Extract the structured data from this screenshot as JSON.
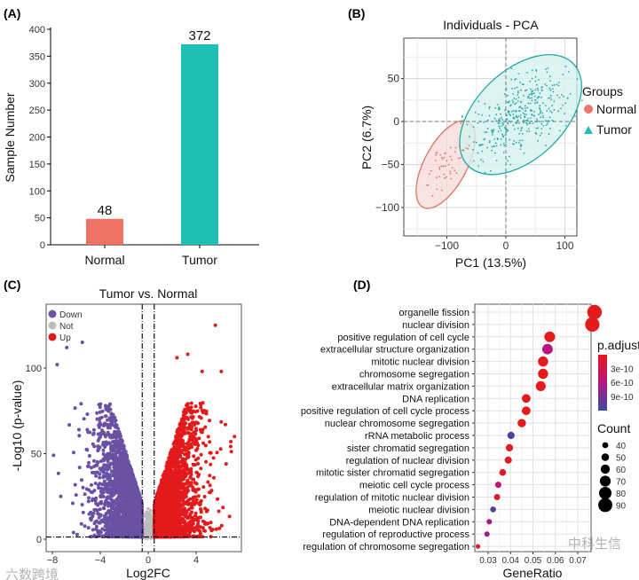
{
  "watermarks": {
    "left": "六数跨境",
    "right": "中科生信"
  },
  "chart_data": [
    {
      "panel": "(A)",
      "type": "bar",
      "title": "",
      "xlabel": "",
      "ylabel": "Sample Number",
      "categories": [
        "Normal",
        "Tumor"
      ],
      "values": [
        48,
        372
      ],
      "data_labels": [
        "48",
        "372"
      ],
      "colors": [
        "#ef7164",
        "#20bfb6"
      ],
      "ylim": [
        0,
        400
      ],
      "yticks": [
        "0",
        "50",
        "100",
        "150",
        "200",
        "250",
        "300",
        "350",
        "400"
      ]
    },
    {
      "panel": "(B)",
      "type": "scatter",
      "title": "Individuals - PCA",
      "xlabel": "PC1 (13.5%)",
      "ylabel": "PC2 (6.7%)",
      "xlim": [
        -160,
        120
      ],
      "ylim": [
        -132,
        95
      ],
      "xticks": [
        "-100",
        "0",
        "100"
      ],
      "yticks": [
        "50",
        "0",
        "-50",
        "-100"
      ],
      "legend": {
        "title": "Groups",
        "position": "right",
        "entries": [
          "Normal",
          "Tumor"
        ]
      },
      "series": [
        {
          "name": "Normal",
          "n": 48,
          "color": "#d9756b",
          "fill": "#f8dcd8",
          "center": [
            -100,
            -52
          ],
          "spread": [
            18,
            22
          ],
          "ellipse": {
            "center": [
              -102,
              -50
            ],
            "rx": 78,
            "ry": 30,
            "angle_deg": -62
          }
        },
        {
          "name": "Tumor",
          "n": 372,
          "color": "#22a9a3",
          "fill": "#d6f1f0",
          "center": [
            20,
            10
          ],
          "spread": [
            32,
            30
          ],
          "ellipse": {
            "center": [
              25,
              8
            ],
            "rx": 118,
            "ry": 62,
            "angle_deg": -44
          }
        }
      ]
    },
    {
      "panel": "(C)",
      "type": "scatter",
      "title": "Tumor vs. Normal",
      "xlabel": "Log2FC",
      "ylabel": "-Log10 (p-value)",
      "xlim": [
        -8.5,
        8
      ],
      "ylim": [
        -5,
        135
      ],
      "xticks": [
        "-8",
        "-4",
        "0",
        "4"
      ],
      "yticks": [
        "0",
        "50",
        "100"
      ],
      "thresholds": {
        "log2fc": [
          -0.5,
          0.5
        ],
        "neg_log10_p": 1.3
      },
      "legend": {
        "position": "top-left",
        "entries": [
          "Down",
          "Not",
          "Up"
        ]
      },
      "series": [
        {
          "name": "Down",
          "color": "#6a51a3",
          "n": 2600
        },
        {
          "name": "Not",
          "color": "#bdbdbd",
          "n": 700
        },
        {
          "name": "Up",
          "color": "#e31a1c",
          "n": 2600
        }
      ],
      "outliers": [
        [
          5.6,
          125
        ],
        [
          -7.6,
          102
        ],
        [
          -5.5,
          115
        ],
        [
          -6.8,
          112
        ],
        [
          2.4,
          106
        ],
        [
          3.3,
          108
        ],
        [
          4.5,
          98
        ],
        [
          6.1,
          98
        ],
        [
          7.2,
          60
        ],
        [
          6.9,
          57
        ],
        [
          -7.9,
          49
        ],
        [
          -7.3,
          25
        ],
        [
          6.5,
          44
        ],
        [
          -6.3,
          21
        ],
        [
          2.7,
          6
        ]
      ]
    },
    {
      "panel": "(D)",
      "type": "scatter",
      "title": "",
      "xlabel": "GeneRatio",
      "ylabel": "",
      "xlim": [
        0.0245,
        0.079
      ],
      "xticks": [
        0.03,
        0.04,
        0.05,
        0.06,
        0.07
      ],
      "xtick_labels": [
        "0.03",
        "0.04",
        "0.05",
        "0.06",
        "0.07"
      ],
      "terms": [
        "organelle fission",
        "nuclear division",
        "positive regulation of cell cycle",
        "extracellular structure organization",
        "mitotic nuclear division",
        "chromosome segregation",
        "extracellular matrix organization",
        "DNA replication",
        "positive regulation of cell cycle process",
        "nuclear chromosome segregation",
        "rRNA metabolic process",
        "sister chromatid segregation",
        "regulation of nuclear division",
        "mitotic sister chromatid segregation",
        "meiotic cell cycle process",
        "regulation of mitotic nuclear division",
        "meiotic nuclear division",
        "DNA-dependent DNA replication",
        "regulation of reproductive process",
        "regulation of chromosome segregation"
      ],
      "gene_ratio": [
        0.0775,
        0.0765,
        0.0575,
        0.0565,
        0.0545,
        0.0545,
        0.0535,
        0.047,
        0.047,
        0.045,
        0.0402,
        0.0395,
        0.039,
        0.0365,
        0.0345,
        0.034,
        0.0322,
        0.0305,
        0.0295,
        0.0255
      ],
      "count": [
        93,
        92,
        69,
        68,
        66,
        66,
        64,
        57,
        57,
        54,
        48,
        48,
        47,
        44,
        41,
        41,
        39,
        37,
        35,
        31
      ],
      "p_adjust": [
        1e-11,
        1e-11,
        1e-11,
        6e-10,
        1e-11,
        1e-11,
        1e-11,
        1e-11,
        1e-11,
        1e-11,
        1.15e-09,
        5e-11,
        5e-11,
        1e-10,
        5e-10,
        1e-10,
        1.1e-09,
        7e-10,
        7e-10,
        1e-10
      ],
      "color_legend": {
        "title": "p.adjust",
        "labels": [
          "3e-10",
          "6e-10",
          "9e-10"
        ],
        "values": [
          3e-10,
          6e-10,
          9e-10
        ],
        "range": [
          1e-11,
          1.2e-09
        ],
        "low_color": "#e41a1c",
        "mid_color": "#b5177f",
        "high_color": "#3b4a9e"
      },
      "size_legend": {
        "title": "Count",
        "labels": [
          "40",
          "50",
          "60",
          "70",
          "80",
          "90"
        ],
        "values": [
          40,
          50,
          60,
          70,
          80,
          90
        ]
      }
    }
  ]
}
